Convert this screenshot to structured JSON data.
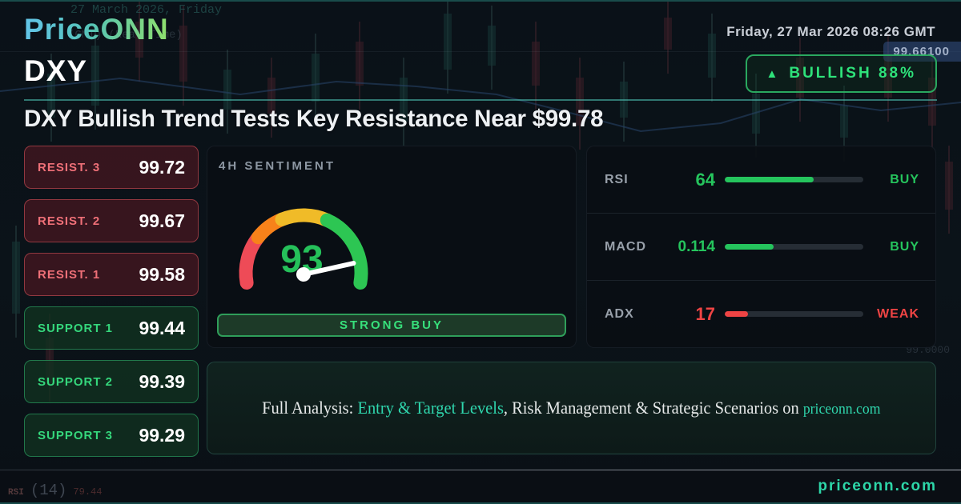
{
  "header": {
    "brand": "PriceONN",
    "datetime": "Friday, 27 Mar 2026 08:26 GMT",
    "symbol": "DXY",
    "badge": {
      "icon": "▲",
      "label": "BULLISH 88%"
    },
    "price_tag": "99.66100"
  },
  "headline": "DXY Bullish Trend Tests Key Resistance Near $99.78",
  "levels": [
    {
      "label": "RESIST. 3",
      "value": "99.72",
      "type": "resistance"
    },
    {
      "label": "RESIST. 2",
      "value": "99.67",
      "type": "resistance"
    },
    {
      "label": "RESIST. 1",
      "value": "99.58",
      "type": "resistance"
    },
    {
      "label": "SUPPORT 1",
      "value": "99.44",
      "type": "support"
    },
    {
      "label": "SUPPORT 2",
      "value": "99.39",
      "type": "support"
    },
    {
      "label": "SUPPORT 3",
      "value": "99.29",
      "type": "support"
    }
  ],
  "gauge": {
    "title": "4H SENTIMENT",
    "value": 93,
    "max": 100,
    "action": "STRONG BUY"
  },
  "indicators": [
    {
      "name": "RSI",
      "value": "64",
      "bar_pct": 64,
      "signal": "BUY",
      "sentiment": "positive"
    },
    {
      "name": "MACD",
      "value": "0.114",
      "bar_pct": 35,
      "signal": "BUY",
      "sentiment": "positive"
    },
    {
      "name": "ADX",
      "value": "17",
      "bar_pct": 17,
      "signal": "WEAK",
      "sentiment": "negative"
    }
  ],
  "banner": {
    "prefix": "Full Analysis: ",
    "highlight": "Entry & Target Levels",
    "middle": ", Risk Management & Strategic Scenarios on ",
    "site": "priceonn.com"
  },
  "footer": {
    "site": "priceonn.com",
    "bg_rsi_label": "RSI",
    "bg_rsi_period": "(14)",
    "bg_rsi_value": "79.44"
  },
  "background": {
    "faint_date": "27 March 2026, Friday",
    "faint_tz": "(GMT) (Real Time)",
    "faint_axis_price": "99.0000"
  },
  "colors": {
    "accent_teal": "#2dd4a8",
    "bull_green": "#25c45d",
    "bear_red": "#ef4444",
    "badge_green": "#2ee27a",
    "brand_gradient_start": "#63c5e9",
    "brand_gradient_end": "#8fe06c",
    "price_tag_bg": "#345287",
    "gauge_segments": [
      "#ee4b57",
      "#f8821a",
      "#f0bb28",
      "#2dc653"
    ]
  }
}
